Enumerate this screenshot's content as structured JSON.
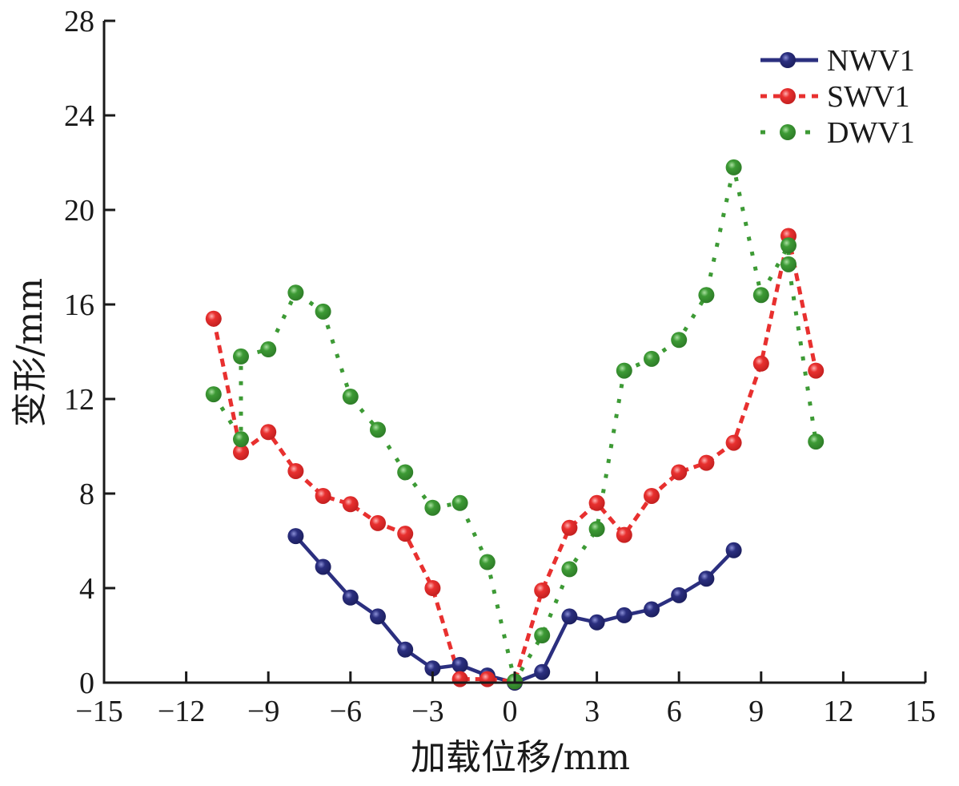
{
  "chart_data": {
    "type": "line",
    "title": "",
    "xlabel": "加载位移/mm",
    "ylabel": "变形/mm",
    "xlim": [
      -15,
      15
    ],
    "ylim": [
      0,
      28
    ],
    "xticks": [
      -15,
      -12,
      -9,
      -6,
      -3,
      0,
      3,
      6,
      9,
      12,
      15
    ],
    "xtick_labels": [
      "−15",
      "−12",
      "−9",
      "−6",
      "−3",
      "0",
      "3",
      "6",
      "9",
      "12",
      "15"
    ],
    "yticks": [
      0,
      4,
      8,
      12,
      16,
      20,
      24,
      28
    ],
    "ytick_labels": [
      "0",
      "4",
      "8",
      "12",
      "16",
      "20",
      "24",
      "28"
    ],
    "grid": false,
    "legend_position": "top-right",
    "series": [
      {
        "name": "NWV1",
        "color": "#2b2f7f",
        "line_style": "solid",
        "x": [
          -8,
          -7,
          -6,
          -5,
          -4,
          -3,
          -2,
          -1,
          0,
          1,
          2,
          3,
          4,
          5,
          6,
          7,
          8
        ],
        "y": [
          6.2,
          4.9,
          3.6,
          2.8,
          1.4,
          0.6,
          0.75,
          0.3,
          0.0,
          0.45,
          2.8,
          2.55,
          2.85,
          3.1,
          3.7,
          4.4,
          5.6
        ]
      },
      {
        "name": "SWV1",
        "color": "#e8302f",
        "line_style": "dashed",
        "x": [
          -11,
          -10,
          -9,
          -8,
          -7,
          -6,
          -5,
          -4,
          -3,
          -2,
          -1,
          0,
          1,
          2,
          3,
          4,
          5,
          6,
          7,
          8,
          9,
          10,
          11
        ],
        "y": [
          15.4,
          9.75,
          10.6,
          8.95,
          7.9,
          7.55,
          6.75,
          6.3,
          4.0,
          0.15,
          0.15,
          0.05,
          3.9,
          6.55,
          7.6,
          6.25,
          7.9,
          8.9,
          9.3,
          10.15,
          13.5,
          18.9,
          13.2
        ]
      },
      {
        "name": "DWV1",
        "color": "#3d9a35",
        "line_style": "dotted",
        "x": [
          -11,
          -10,
          -10,
          -9,
          -8,
          -7,
          -6,
          -5,
          -4,
          -3,
          -2,
          -1,
          0,
          1,
          2,
          3,
          4,
          5,
          6,
          7,
          8,
          9,
          10,
          10,
          11
        ],
        "y": [
          12.2,
          10.3,
          13.8,
          14.1,
          16.5,
          15.7,
          12.1,
          10.7,
          8.9,
          7.4,
          7.6,
          5.1,
          0.05,
          2.0,
          4.8,
          6.5,
          13.2,
          13.7,
          14.5,
          16.4,
          21.8,
          16.4,
          18.5,
          17.7,
          10.2
        ]
      }
    ]
  }
}
